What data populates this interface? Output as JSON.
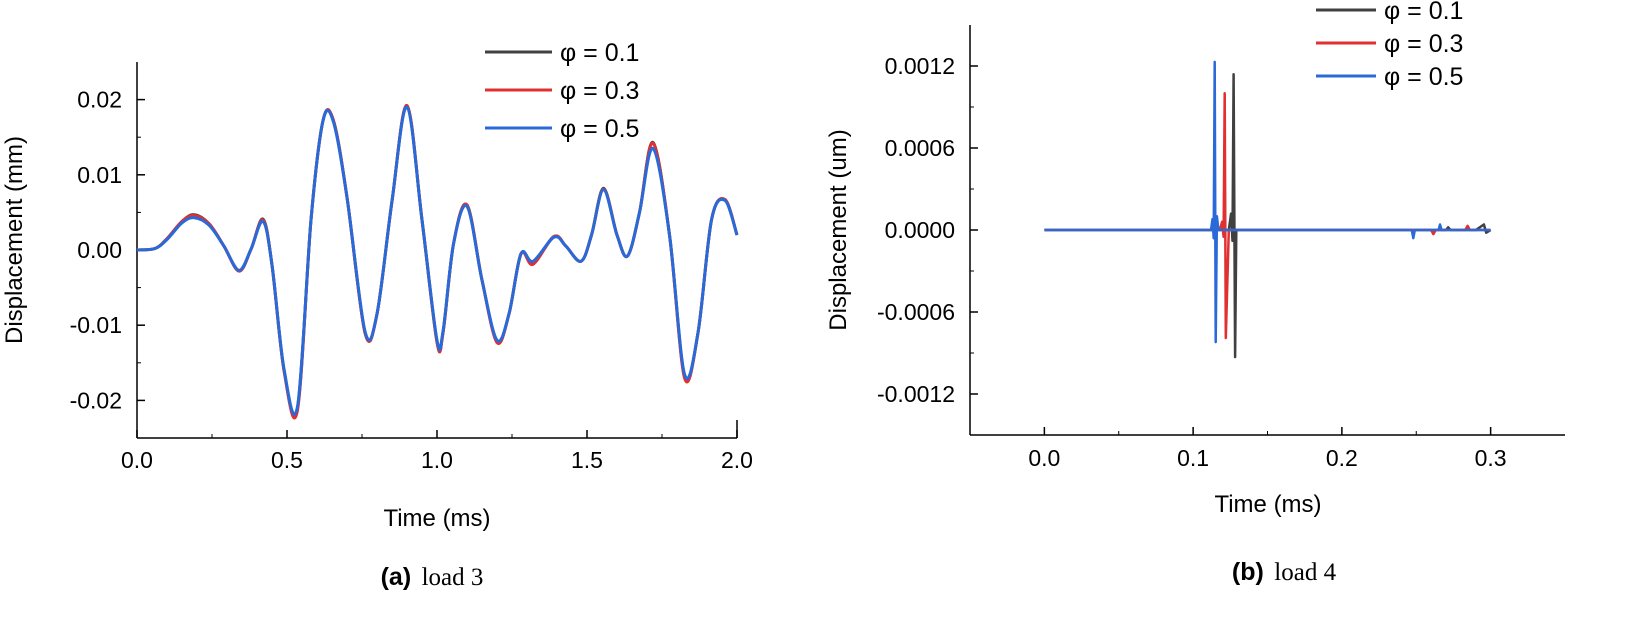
{
  "chart_data": [
    {
      "type": "line",
      "caption_letter": "(a)",
      "caption_text": "load 3",
      "xlabel": "Time (ms)",
      "ylabel": "Displacement (mm)",
      "xlim": [
        0,
        2.0
      ],
      "ylim": [
        -0.025,
        0.025
      ],
      "xticks": [
        "0.0",
        "0.5",
        "1.0",
        "1.5",
        "2.0"
      ],
      "yticks": [
        "0.02",
        "0.01",
        "0.00",
        "-0.01",
        "-0.02"
      ],
      "legend": {
        "placement": "top-right"
      },
      "series": [
        {
          "name": "φ = 0.1",
          "color": "#404040",
          "x": [
            0,
            0.06,
            0.1,
            0.15,
            0.19,
            0.24,
            0.29,
            0.34,
            0.38,
            0.42,
            0.45,
            0.49,
            0.535,
            0.58,
            0.62,
            0.655,
            0.7,
            0.76,
            0.8,
            0.85,
            0.9,
            0.95,
            1.0,
            1.02,
            1.055,
            1.1,
            1.15,
            1.2,
            1.24,
            1.28,
            1.32,
            1.39,
            1.43,
            1.48,
            1.515,
            1.555,
            1.6,
            1.635,
            1.675,
            1.72,
            1.775,
            1.825,
            1.87,
            1.915,
            1.96,
            2.0
          ],
          "y": [
            0,
            0.0002,
            0.0015,
            0.0038,
            0.0047,
            0.0035,
            0.0005,
            -0.0028,
            0.0001,
            0.0041,
            -0.002,
            -0.016,
            -0.021,
            0.004,
            0.0172,
            0.0172,
            0.007,
            -0.011,
            -0.0085,
            0.0065,
            0.0192,
            0.004,
            -0.0122,
            -0.011,
            0.0008,
            0.006,
            -0.004,
            -0.0122,
            -0.0085,
            -0.0005,
            -0.0018,
            0.0018,
            0.0005,
            -0.0015,
            0.002,
            0.0082,
            0.002,
            -0.0008,
            0.005,
            0.0143,
            0.002,
            -0.0168,
            -0.011,
            0.004,
            0.0067,
            0.002
          ]
        },
        {
          "name": "φ = 0.3",
          "color": "#e03030",
          "x": [
            0,
            0.06,
            0.1,
            0.15,
            0.19,
            0.24,
            0.29,
            0.34,
            0.38,
            0.42,
            0.45,
            0.49,
            0.535,
            0.58,
            0.62,
            0.655,
            0.7,
            0.76,
            0.8,
            0.85,
            0.9,
            0.95,
            1.0,
            1.02,
            1.055,
            1.1,
            1.15,
            1.2,
            1.24,
            1.28,
            1.32,
            1.39,
            1.43,
            1.48,
            1.515,
            1.555,
            1.6,
            1.635,
            1.675,
            1.72,
            1.775,
            1.825,
            1.87,
            1.915,
            1.96,
            2.0
          ],
          "y": [
            0,
            0.0002,
            0.0015,
            0.0038,
            0.0046,
            0.0035,
            0.0005,
            -0.0028,
            0.0001,
            0.004,
            -0.002,
            -0.016,
            -0.0213,
            0.004,
            0.0172,
            0.0172,
            0.007,
            -0.011,
            -0.0085,
            0.0065,
            0.0192,
            0.004,
            -0.0123,
            -0.011,
            0.0008,
            0.006,
            -0.004,
            -0.0123,
            -0.0085,
            -0.0005,
            -0.0019,
            0.0018,
            0.0005,
            -0.0015,
            0.002,
            0.0081,
            0.002,
            -0.0008,
            0.005,
            0.0142,
            0.002,
            -0.017,
            -0.011,
            0.004,
            0.0067,
            0.002
          ]
        },
        {
          "name": "φ = 0.5",
          "color": "#2a6ad8",
          "x": [
            0,
            0.06,
            0.1,
            0.15,
            0.19,
            0.24,
            0.29,
            0.34,
            0.38,
            0.42,
            0.45,
            0.49,
            0.535,
            0.58,
            0.62,
            0.655,
            0.7,
            0.76,
            0.8,
            0.85,
            0.9,
            0.95,
            1.0,
            1.02,
            1.055,
            1.1,
            1.15,
            1.2,
            1.24,
            1.28,
            1.32,
            1.39,
            1.43,
            1.48,
            1.515,
            1.555,
            1.6,
            1.635,
            1.675,
            1.72,
            1.775,
            1.825,
            1.87,
            1.915,
            1.96,
            2.0
          ],
          "y": [
            0,
            0.0002,
            0.0014,
            0.0036,
            0.0043,
            0.0033,
            0.0005,
            -0.0027,
            0.0001,
            0.0038,
            -0.002,
            -0.0158,
            -0.0208,
            0.004,
            0.0172,
            0.017,
            0.007,
            -0.0108,
            -0.0085,
            0.0065,
            0.019,
            0.004,
            -0.012,
            -0.0108,
            0.0008,
            0.0058,
            -0.004,
            -0.012,
            -0.0085,
            -0.0005,
            -0.0015,
            0.0017,
            0.0005,
            -0.0015,
            0.002,
            0.008,
            0.002,
            -0.0008,
            0.005,
            0.0135,
            0.002,
            -0.0165,
            -0.011,
            0.004,
            0.0066,
            0.002
          ]
        }
      ]
    },
    {
      "type": "line",
      "caption_letter": "(b)",
      "caption_text": "load 4",
      "xlabel": "Time (ms)",
      "ylabel": "Displacement (um)",
      "xlim": [
        -0.05,
        0.35
      ],
      "ylim": [
        -0.0015,
        0.0015
      ],
      "xticks": [
        "0.0",
        "0.1",
        "0.2",
        "0.3"
      ],
      "yticks": [
        "0.0012",
        "0.0006",
        "0.0000",
        "-0.0006",
        "-0.0012"
      ],
      "legend": {
        "placement": "top-right"
      },
      "series": [
        {
          "name": "φ = 0.1",
          "color": "#404040",
          "x": [
            0,
            0.124,
            0.1255,
            0.1265,
            0.1272,
            0.1282,
            0.129,
            0.2,
            0.27,
            0.2715,
            0.273,
            0.29,
            0.2955,
            0.297,
            0.3
          ],
          "y": [
            0,
            0,
            0.00012,
            -8e-05,
            0.00114,
            -0.00093,
            0,
            0,
            0,
            2e-05,
            0,
            0,
            4e-05,
            -2e-05,
            0
          ]
        },
        {
          "name": "φ = 0.3",
          "color": "#e03030",
          "x": [
            0,
            0.118,
            0.1195,
            0.1205,
            0.1212,
            0.122,
            0.124,
            0.2,
            0.26,
            0.2615,
            0.263,
            0.283,
            0.2845,
            0.286,
            0.3
          ],
          "y": [
            0,
            0,
            6e-05,
            -5e-05,
            0.001,
            -0.00079,
            0,
            0,
            0,
            -3e-05,
            0,
            0,
            3e-05,
            0,
            0
          ]
        },
        {
          "name": "φ = 0.5",
          "color": "#2a6ad8",
          "x": [
            0,
            0.112,
            0.113,
            0.1138,
            0.1145,
            0.1152,
            0.116,
            0.117,
            0.2,
            0.247,
            0.248,
            0.249,
            0.265,
            0.266,
            0.267,
            0.3
          ],
          "y": [
            0,
            0,
            8e-05,
            -6e-05,
            0.00123,
            -0.00082,
            0.0001,
            0,
            0,
            0,
            -6e-05,
            0,
            0,
            4e-05,
            0,
            0
          ]
        }
      ]
    }
  ]
}
